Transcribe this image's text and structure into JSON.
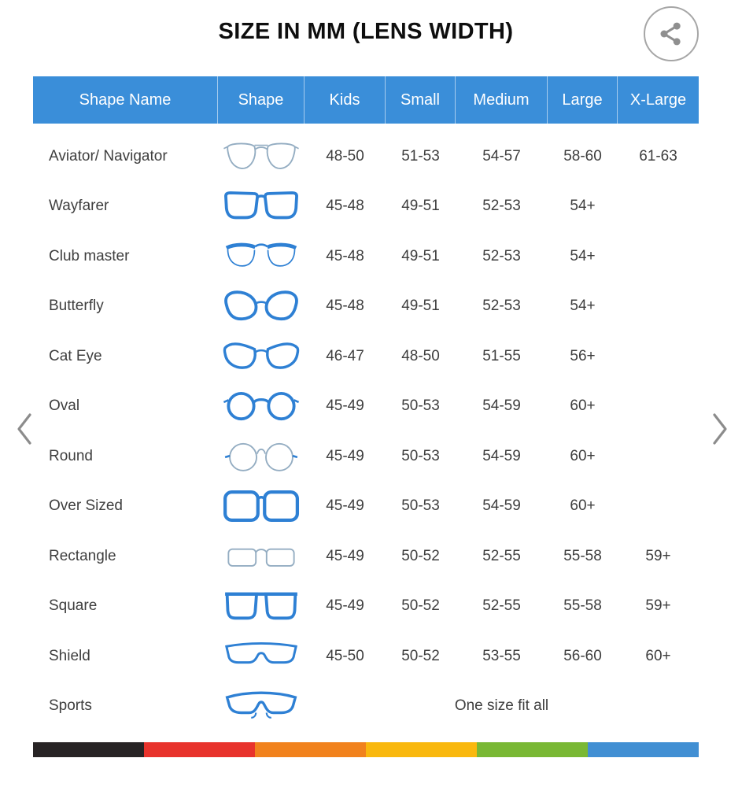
{
  "title": "SIZE IN MM (LENS WIDTH)",
  "table": {
    "columns": [
      "Shape Name",
      "Shape",
      "Kids",
      "Small",
      "Medium",
      "Large",
      "X-Large"
    ],
    "rows": [
      {
        "name": "Aviator/ Navigator",
        "icon": "aviator",
        "sizes": [
          "48-50",
          "51-53",
          "54-57",
          "58-60",
          "61-63"
        ]
      },
      {
        "name": "Wayfarer",
        "icon": "wayfarer",
        "sizes": [
          "45-48",
          "49-51",
          "52-53",
          "54+",
          ""
        ]
      },
      {
        "name": "Club master",
        "icon": "clubmaster",
        "sizes": [
          "45-48",
          "49-51",
          "52-53",
          "54+",
          ""
        ]
      },
      {
        "name": "Butterfly",
        "icon": "butterfly",
        "sizes": [
          "45-48",
          "49-51",
          "52-53",
          "54+",
          ""
        ]
      },
      {
        "name": "Cat Eye",
        "icon": "cateye",
        "sizes": [
          "46-47",
          "48-50",
          "51-55",
          "56+",
          ""
        ]
      },
      {
        "name": "Oval",
        "icon": "oval",
        "sizes": [
          "45-49",
          "50-53",
          "54-59",
          "60+",
          ""
        ]
      },
      {
        "name": "Round",
        "icon": "round",
        "sizes": [
          "45-49",
          "50-53",
          "54-59",
          "60+",
          ""
        ]
      },
      {
        "name": "Over Sized",
        "icon": "oversized",
        "sizes": [
          "45-49",
          "50-53",
          "54-59",
          "60+",
          ""
        ]
      },
      {
        "name": "Rectangle",
        "icon": "rectangle",
        "sizes": [
          "45-49",
          "50-52",
          "52-55",
          "55-58",
          "59+"
        ]
      },
      {
        "name": "Square",
        "icon": "square",
        "sizes": [
          "45-49",
          "50-52",
          "52-55",
          "55-58",
          "59+"
        ]
      },
      {
        "name": "Shield",
        "icon": "shield",
        "sizes": [
          "45-50",
          "50-52",
          "53-55",
          "56-60",
          "60+"
        ]
      },
      {
        "name": "Sports",
        "icon": "sports",
        "span_text": "One size fit all"
      }
    ]
  },
  "carousel": {
    "prev": "chevron-left",
    "next": "chevron-right"
  },
  "share": {
    "icon": "share-icon"
  },
  "footer_stripe_colors": [
    "#282425",
    "#e8332c",
    "#f1821d",
    "#f9b80e",
    "#79b834",
    "#418fd3"
  ],
  "colors": {
    "header_bg": "#3a8ed9",
    "header_text": "#ffffff",
    "body_text": "#3e3e3e",
    "icon_blue": "#2e80d4",
    "icon_light": "#94adc2",
    "chevron_gray": "#8c8c8c"
  }
}
